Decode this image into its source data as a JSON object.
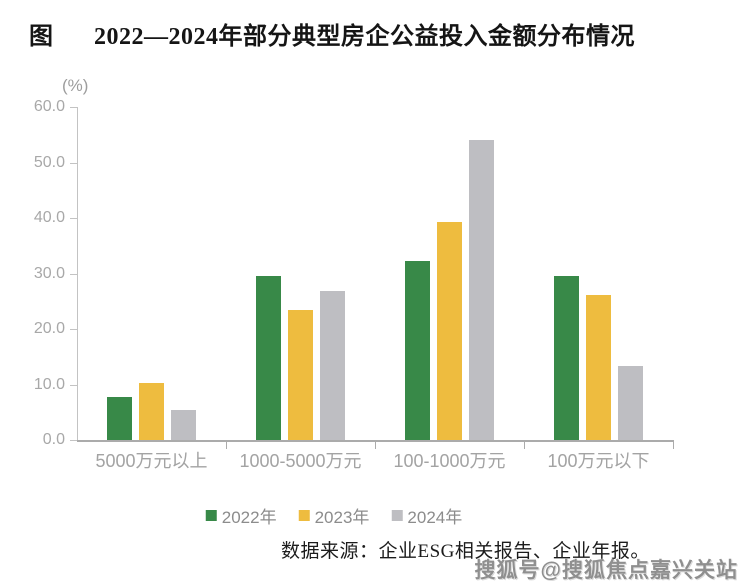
{
  "figure_label": "图",
  "unit_label": "(%)",
  "source_note": "数据来源：企业ESG相关报告、企业年报。",
  "watermark": "搜狐号@搜狐焦点嘉兴关站",
  "colors": {
    "series_2022": "#388948",
    "series_2023": "#EEBC3F",
    "series_2024": "#BEBEC2",
    "axis_line": "#c3c3c3",
    "tick_text": "#a8a8a8",
    "title_text": "#151515"
  },
  "chart_data": {
    "type": "bar",
    "title": "2022—2024年部分典型房企公益投入金额分布情况",
    "categories": [
      "5000万元以上",
      "1000-5000万元",
      "100-1000万元",
      "100万元以下"
    ],
    "series": [
      {
        "name": "2022年",
        "color": "#388948",
        "values": [
          7.8,
          29.5,
          32.3,
          29.5
        ]
      },
      {
        "name": "2023年",
        "color": "#EEBC3F",
        "values": [
          10.3,
          23.5,
          39.3,
          26.2
        ]
      },
      {
        "name": "2024年",
        "color": "#BEBEC2",
        "values": [
          5.4,
          26.9,
          54.0,
          13.3
        ]
      }
    ],
    "xlabel": "",
    "ylabel": "(%)",
    "ylim": [
      0,
      60
    ],
    "yticks": [
      0,
      10,
      20,
      30,
      40,
      50,
      60
    ],
    "ytick_labels": [
      "0.0",
      "10.0",
      "20.0",
      "30.0",
      "40.0",
      "50.0",
      "60.0"
    ],
    "grid": false,
    "legend_position": "bottom"
  }
}
